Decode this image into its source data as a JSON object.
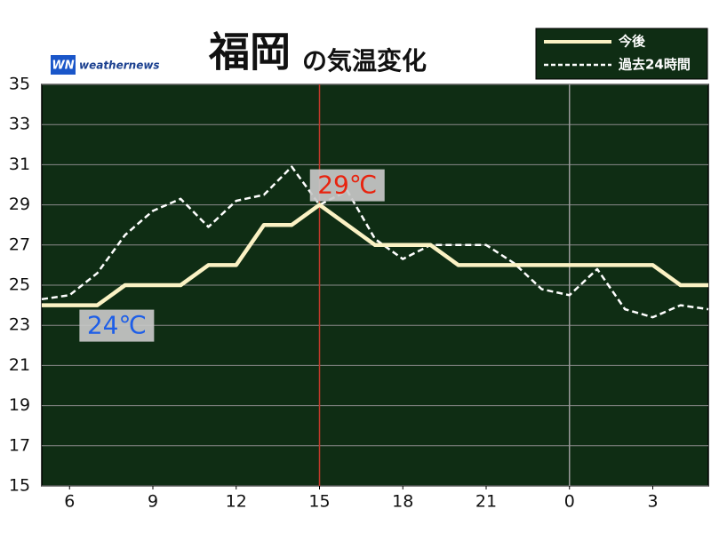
{
  "chart_data": {
    "type": "line",
    "title": "福岡",
    "subtitle": "の気温変化",
    "logo": "weathernews",
    "logo_mark": "WN",
    "x": [
      5,
      6,
      7,
      8,
      9,
      10,
      11,
      12,
      13,
      14,
      15,
      16,
      17,
      18,
      19,
      20,
      21,
      22,
      23,
      24,
      25,
      26,
      27,
      28,
      29
    ],
    "xlim": [
      5,
      29
    ],
    "xticks": [
      6,
      9,
      12,
      15,
      18,
      21,
      {
        "value": 24,
        "label": "0"
      },
      {
        "value": 27,
        "label": "3"
      }
    ],
    "ylim": [
      15,
      35
    ],
    "yticks": [
      15,
      17,
      19,
      21,
      23,
      25,
      27,
      29,
      31,
      33,
      35
    ],
    "grid": true,
    "legend": "top-right",
    "series": [
      {
        "name": "今後",
        "color": "#fbf2c4",
        "style": "solid",
        "values": [
          24,
          24,
          24,
          25,
          25,
          25,
          26,
          26,
          28,
          28,
          29,
          28,
          27,
          27,
          27,
          26,
          26,
          26,
          26,
          26,
          26,
          26,
          26,
          25,
          25
        ]
      },
      {
        "name": "過去24時間",
        "color": "#ffffff",
        "style": "dashed",
        "values": [
          24.3,
          24.5,
          25.6,
          27.5,
          28.7,
          29.3,
          27.9,
          29.2,
          29.5,
          30.9,
          29.0,
          29.7,
          27.3,
          26.3,
          27.0,
          27.0,
          27.0,
          26.1,
          24.8,
          24.5,
          25.8,
          23.8,
          23.4,
          24.0,
          23.8
        ]
      }
    ],
    "vlines": [
      {
        "x": 15,
        "color": "#c0392b"
      },
      {
        "x": 24,
        "color": "#9a9a9a"
      }
    ],
    "annotations": [
      {
        "label": "29℃",
        "x": 16,
        "value": 29,
        "position": "above",
        "color": "#e8230e"
      },
      {
        "label": "24℃",
        "x": 7.7,
        "value": 24,
        "position": "below",
        "color": "#1d5ee8"
      }
    ]
  }
}
